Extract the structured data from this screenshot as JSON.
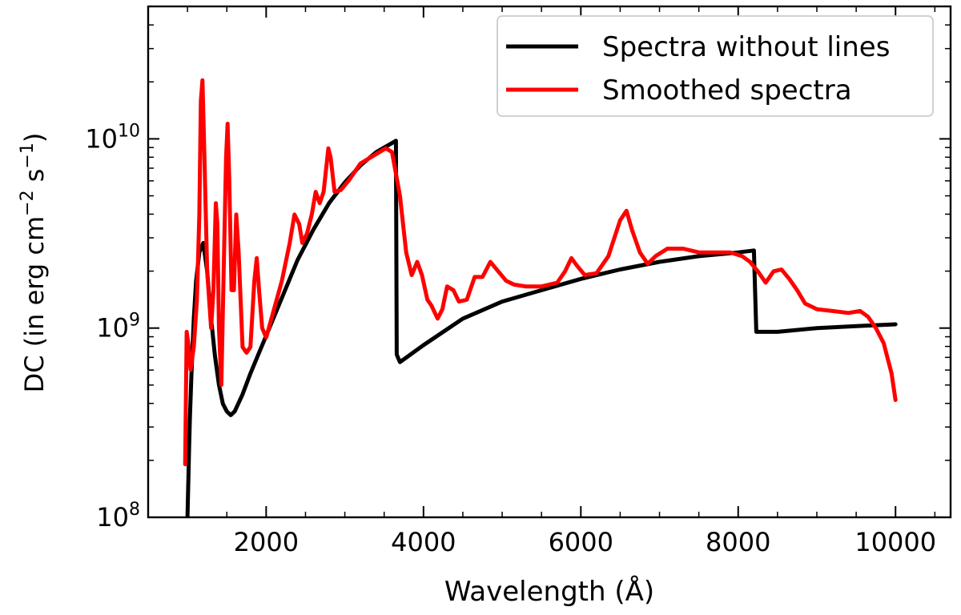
{
  "chart_data": {
    "type": "line",
    "title": "",
    "xlabel": "Wavelength (Å)",
    "ylabel_text": "DC (in erg cm",
    "ylabel_exp1": "−2",
    "ylabel_mid": " s",
    "ylabel_exp2": "−1",
    "ylabel_close": ")",
    "y_scale": "log",
    "xlim": [
      500,
      10700
    ],
    "ylim_log10": [
      8,
      10.7
    ],
    "x_ticks": [
      {
        "value": 2000,
        "label": "2000"
      },
      {
        "value": 4000,
        "label": "4000"
      },
      {
        "value": 6000,
        "label": "6000"
      },
      {
        "value": 8000,
        "label": "8000"
      },
      {
        "value": 10000,
        "label": "10000"
      }
    ],
    "y_ticks": [
      {
        "exp": 8,
        "base": "10",
        "power": "8"
      },
      {
        "exp": 9,
        "base": "10",
        "power": "9"
      },
      {
        "exp": 10,
        "base": "10",
        "power": "10"
      }
    ],
    "legend": {
      "position": "top-right"
    },
    "series": [
      {
        "name": "Spectra without lines",
        "color": "#000000",
        "points": [
          [
            1000,
            8.0
          ],
          [
            1010,
            8.18
          ],
          [
            1020,
            8.36
          ],
          [
            1030,
            8.52
          ],
          [
            1050,
            8.75
          ],
          [
            1080,
            9.05
          ],
          [
            1110,
            9.25
          ],
          [
            1150,
            9.4
          ],
          [
            1200,
            9.45
          ],
          [
            1250,
            9.3
          ],
          [
            1300,
            9.05
          ],
          [
            1350,
            8.85
          ],
          [
            1400,
            8.7
          ],
          [
            1450,
            8.6
          ],
          [
            1500,
            8.56
          ],
          [
            1550,
            8.54
          ],
          [
            1600,
            8.56
          ],
          [
            1700,
            8.65
          ],
          [
            1800,
            8.76
          ],
          [
            1900,
            8.86
          ],
          [
            2000,
            8.96
          ],
          [
            2200,
            9.16
          ],
          [
            2400,
            9.36
          ],
          [
            2600,
            9.52
          ],
          [
            2800,
            9.66
          ],
          [
            3000,
            9.77
          ],
          [
            3200,
            9.86
          ],
          [
            3400,
            9.93
          ],
          [
            3650,
            9.99
          ],
          [
            3660,
            8.86
          ],
          [
            3700,
            8.82
          ],
          [
            4000,
            8.91
          ],
          [
            4500,
            9.05
          ],
          [
            5000,
            9.14
          ],
          [
            5500,
            9.2
          ],
          [
            6000,
            9.26
          ],
          [
            6500,
            9.31
          ],
          [
            7000,
            9.35
          ],
          [
            7500,
            9.38
          ],
          [
            8000,
            9.4
          ],
          [
            8200,
            9.41
          ],
          [
            8230,
            8.98
          ],
          [
            8500,
            8.98
          ],
          [
            9000,
            9.0
          ],
          [
            9500,
            9.01
          ],
          [
            10000,
            9.02
          ]
        ]
      },
      {
        "name": "Smoothed spectra",
        "color": "#ff0000",
        "points": [
          [
            970,
            8.28
          ],
          [
            990,
            8.98
          ],
          [
            1010,
            8.92
          ],
          [
            1040,
            8.78
          ],
          [
            1080,
            8.9
          ],
          [
            1120,
            9.15
          ],
          [
            1150,
            9.6
          ],
          [
            1170,
            10.2
          ],
          [
            1190,
            10.31
          ],
          [
            1210,
            10.0
          ],
          [
            1250,
            9.3
          ],
          [
            1300,
            9.0
          ],
          [
            1330,
            9.2
          ],
          [
            1360,
            9.66
          ],
          [
            1380,
            9.55
          ],
          [
            1400,
            9.0
          ],
          [
            1430,
            8.7
          ],
          [
            1460,
            9.3
          ],
          [
            1490,
            9.9
          ],
          [
            1510,
            10.08
          ],
          [
            1530,
            9.8
          ],
          [
            1560,
            9.2
          ],
          [
            1590,
            9.2
          ],
          [
            1620,
            9.6
          ],
          [
            1650,
            9.4
          ],
          [
            1700,
            8.9
          ],
          [
            1750,
            8.87
          ],
          [
            1800,
            8.9
          ],
          [
            1850,
            9.25
          ],
          [
            1880,
            9.37
          ],
          [
            1910,
            9.2
          ],
          [
            1950,
            9.0
          ],
          [
            2000,
            8.95
          ],
          [
            2100,
            9.1
          ],
          [
            2200,
            9.25
          ],
          [
            2300,
            9.45
          ],
          [
            2360,
            9.6
          ],
          [
            2420,
            9.55
          ],
          [
            2460,
            9.45
          ],
          [
            2520,
            9.5
          ],
          [
            2580,
            9.6
          ],
          [
            2630,
            9.72
          ],
          [
            2680,
            9.66
          ],
          [
            2730,
            9.72
          ],
          [
            2790,
            9.95
          ],
          [
            2820,
            9.9
          ],
          [
            2870,
            9.72
          ],
          [
            2950,
            9.73
          ],
          [
            3050,
            9.78
          ],
          [
            3200,
            9.87
          ],
          [
            3400,
            9.92
          ],
          [
            3520,
            9.95
          ],
          [
            3600,
            9.93
          ],
          [
            3700,
            9.7
          ],
          [
            3780,
            9.4
          ],
          [
            3850,
            9.28
          ],
          [
            3920,
            9.35
          ],
          [
            3980,
            9.28
          ],
          [
            4050,
            9.15
          ],
          [
            4100,
            9.12
          ],
          [
            4180,
            9.05
          ],
          [
            4240,
            9.1
          ],
          [
            4300,
            9.22
          ],
          [
            4380,
            9.2
          ],
          [
            4450,
            9.14
          ],
          [
            4550,
            9.15
          ],
          [
            4650,
            9.27
          ],
          [
            4750,
            9.27
          ],
          [
            4850,
            9.35
          ],
          [
            4950,
            9.3
          ],
          [
            5050,
            9.25
          ],
          [
            5150,
            9.23
          ],
          [
            5300,
            9.22
          ],
          [
            5500,
            9.22
          ],
          [
            5700,
            9.24
          ],
          [
            5800,
            9.3
          ],
          [
            5880,
            9.37
          ],
          [
            5950,
            9.33
          ],
          [
            6050,
            9.28
          ],
          [
            6200,
            9.29
          ],
          [
            6350,
            9.38
          ],
          [
            6500,
            9.57
          ],
          [
            6580,
            9.62
          ],
          [
            6650,
            9.52
          ],
          [
            6750,
            9.4
          ],
          [
            6850,
            9.34
          ],
          [
            6950,
            9.38
          ],
          [
            7100,
            9.42
          ],
          [
            7300,
            9.42
          ],
          [
            7500,
            9.4
          ],
          [
            7700,
            9.4
          ],
          [
            7900,
            9.4
          ],
          [
            8050,
            9.38
          ],
          [
            8150,
            9.35
          ],
          [
            8250,
            9.3
          ],
          [
            8350,
            9.24
          ],
          [
            8450,
            9.3
          ],
          [
            8550,
            9.31
          ],
          [
            8650,
            9.26
          ],
          [
            8750,
            9.2
          ],
          [
            8850,
            9.13
          ],
          [
            9000,
            9.1
          ],
          [
            9200,
            9.09
          ],
          [
            9400,
            9.08
          ],
          [
            9550,
            9.09
          ],
          [
            9650,
            9.06
          ],
          [
            9750,
            9.0
          ],
          [
            9850,
            8.92
          ],
          [
            9950,
            8.76
          ],
          [
            10000,
            8.62
          ]
        ]
      }
    ]
  }
}
